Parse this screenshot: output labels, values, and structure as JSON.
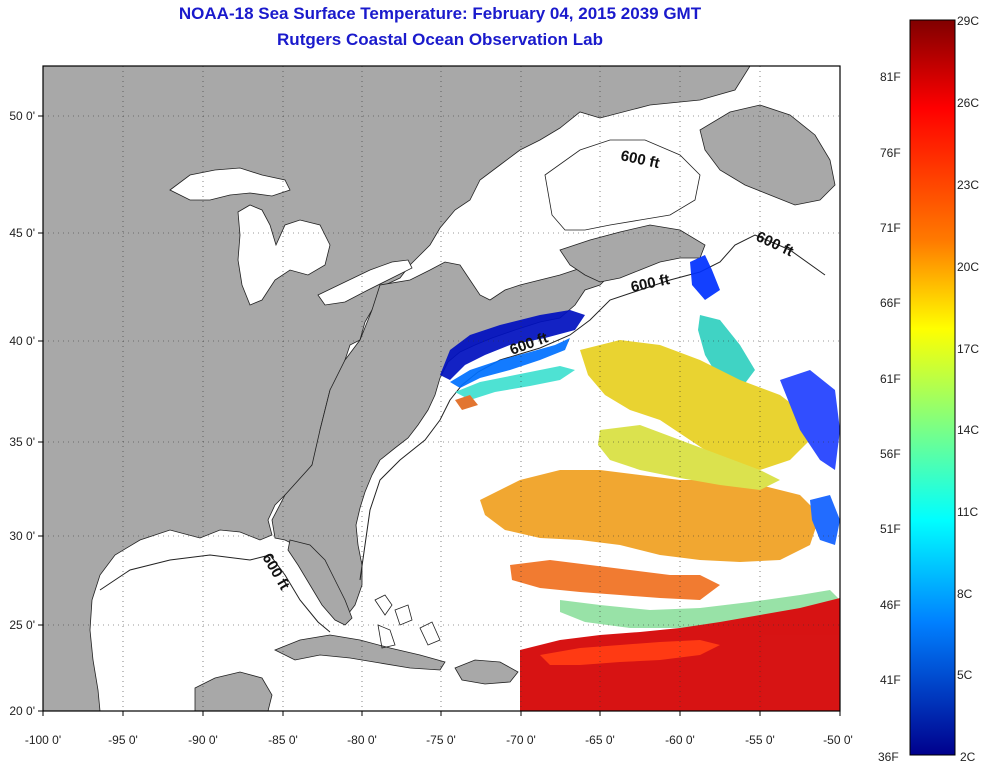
{
  "title": "NOAA-18 Sea Surface Temperature:  February 04, 2015 2039 GMT",
  "subtitle": "Rutgers Coastal Ocean Observation Lab",
  "axes": {
    "lon_labels": [
      "-100 0'",
      "-95 0'",
      "-90 0'",
      "-85 0'",
      "-80 0'",
      "-75 0'",
      "-70 0'",
      "-65 0'",
      "-60 0'",
      "-55 0'",
      "-50 0'"
    ],
    "lat_labels": [
      "50 0'",
      "45 0'",
      "40 0'",
      "35 0'",
      "30 0'",
      "25 0'",
      "20 0'"
    ]
  },
  "contour_labels": [
    "600 ft",
    "600 ft",
    "600 ft",
    "600 ft",
    "600 ft"
  ],
  "colorbar": {
    "celsius": [
      "29C",
      "26C",
      "23C",
      "20C",
      "17C",
      "14C",
      "11C",
      "8C",
      "5C",
      "2C"
    ],
    "fahrenheit": [
      "81F",
      "76F",
      "71F",
      "66F",
      "61F",
      "56F",
      "51F",
      "46F",
      "41F",
      "36F"
    ]
  },
  "colors": {
    "land": "#a8a8a8",
    "ocean_no_data": "#ffffff",
    "title": "#1a1acc",
    "warm": "#d40000",
    "cold": "#0010c0"
  }
}
